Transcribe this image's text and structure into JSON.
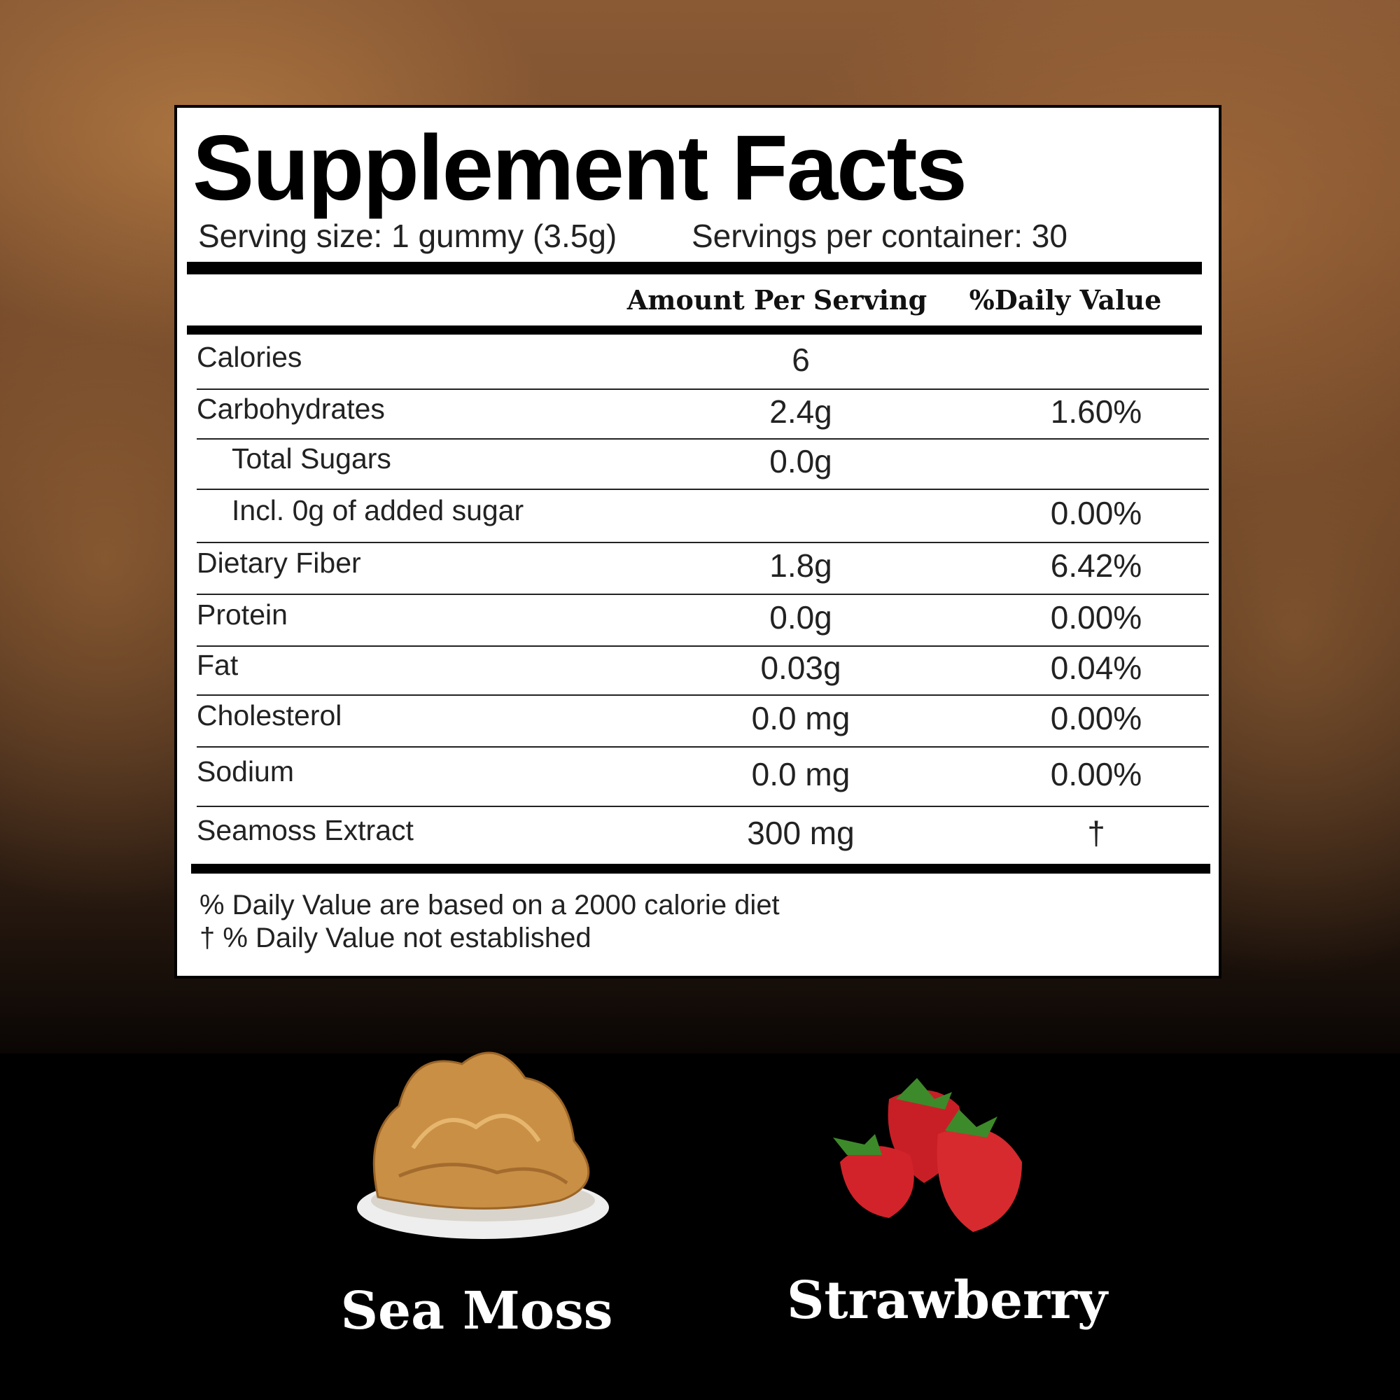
{
  "title": "Supplement Facts",
  "serving_size": "Serving size: 1 gummy (3.5g)",
  "servings_per_container": "Servings per container: 30",
  "headers": {
    "amount": "Amount Per Serving",
    "daily_value": "%Daily Value"
  },
  "rows": [
    {
      "label": "Calories",
      "amount": "6",
      "dv": "",
      "indent": false
    },
    {
      "label": "Carbohydrates",
      "amount": "2.4g",
      "dv": "1.60%",
      "indent": false
    },
    {
      "label": "Total Sugars",
      "amount": "0.0g",
      "dv": "",
      "indent": true
    },
    {
      "label": "Incl. 0g of added sugar",
      "amount": "",
      "dv": "0.00%",
      "indent": true
    },
    {
      "label": "Dietary Fiber",
      "amount": "1.8g",
      "dv": "6.42%",
      "indent": false
    },
    {
      "label": "Protein",
      "amount": "0.0g",
      "dv": "0.00%",
      "indent": false
    },
    {
      "label": "Fat",
      "amount": "0.03g",
      "dv": "0.04%",
      "indent": false
    },
    {
      "label": "Cholesterol",
      "amount": "0.0 mg",
      "dv": "0.00%",
      "indent": false
    },
    {
      "label": "Sodium",
      "amount": "0.0 mg",
      "dv": "0.00%",
      "indent": false
    },
    {
      "label": "Seamoss Extract",
      "amount": "300 mg",
      "dv": "†",
      "indent": false
    }
  ],
  "footnotes": [
    "% Daily Value are based on a 2000 calorie diet",
    "† % Daily Value not established"
  ],
  "ingredients": [
    {
      "name": "Sea Moss",
      "image": "sea-moss-dish"
    },
    {
      "name": "Strawberry",
      "image": "strawberries"
    }
  ],
  "colors": {
    "background": "#6b4326",
    "panel": "#ffffff",
    "text": "#000000",
    "band": "#000000",
    "strawberry": "#d2232a",
    "sea_moss": "#c98f45"
  }
}
